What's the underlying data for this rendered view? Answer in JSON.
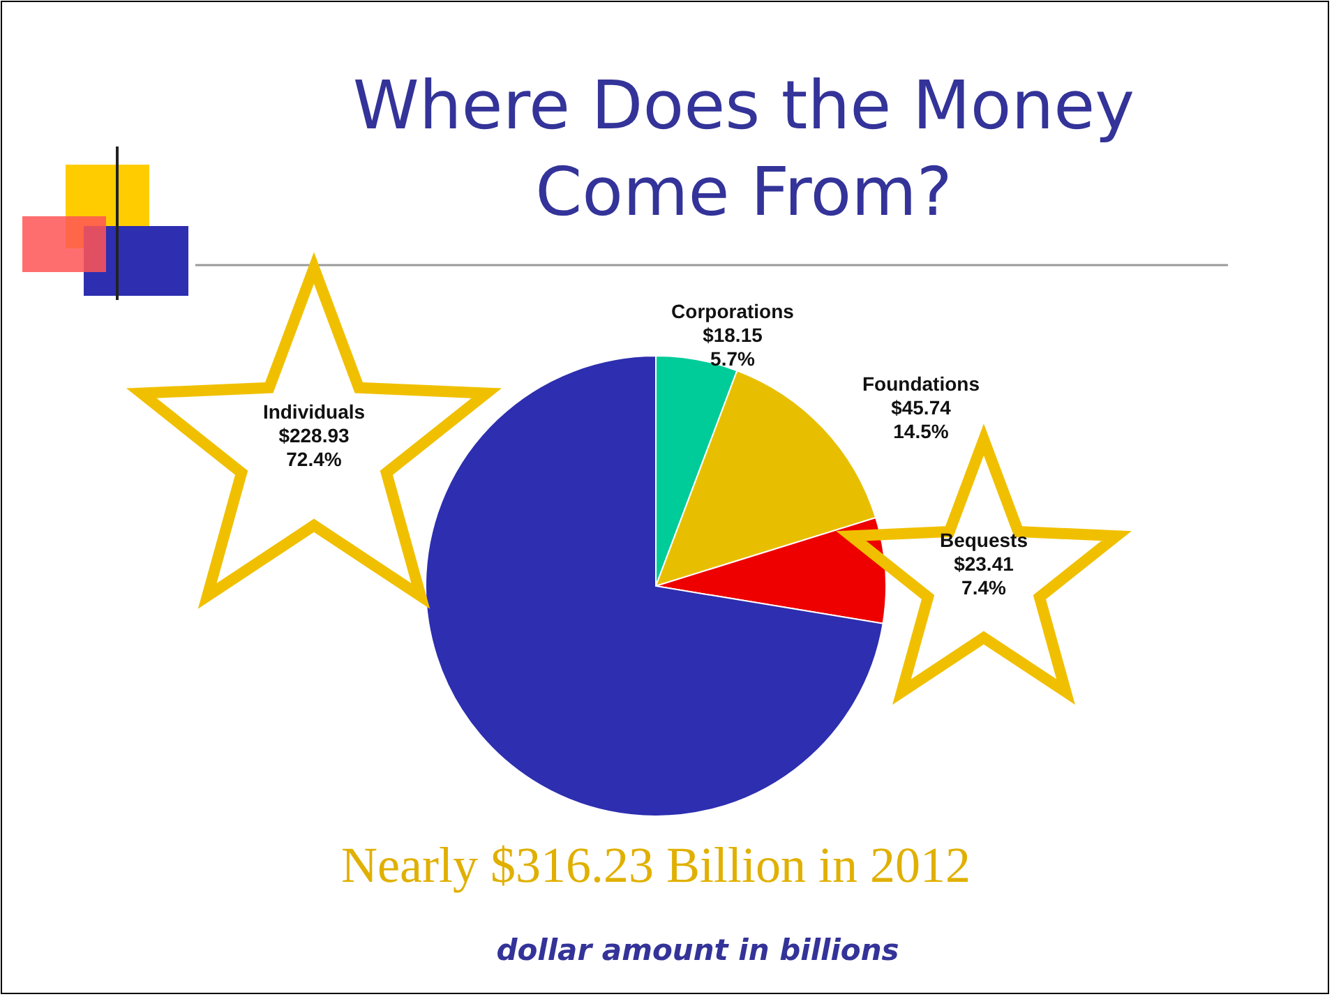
{
  "chart_data": {
    "type": "pie",
    "title": "Where Does the Money\nCome From?",
    "categories": [
      "Corporations",
      "Foundations",
      "Bequests",
      "Individuals"
    ],
    "values": [
      18.15,
      45.74,
      23.41,
      228.93
    ],
    "colors": [
      "#00cc99",
      "#e8bf00",
      "#ee0000",
      "#2e2eb0"
    ],
    "value_labels": [
      "$18.15\n5.7%",
      "$45.74\n14.5%",
      "$23.41\n7.4%",
      "$228.93\n72.4%"
    ],
    "annotations": [
      "Nearly $316.23 Billion in 2012",
      "dollar amount in billions"
    ]
  }
}
